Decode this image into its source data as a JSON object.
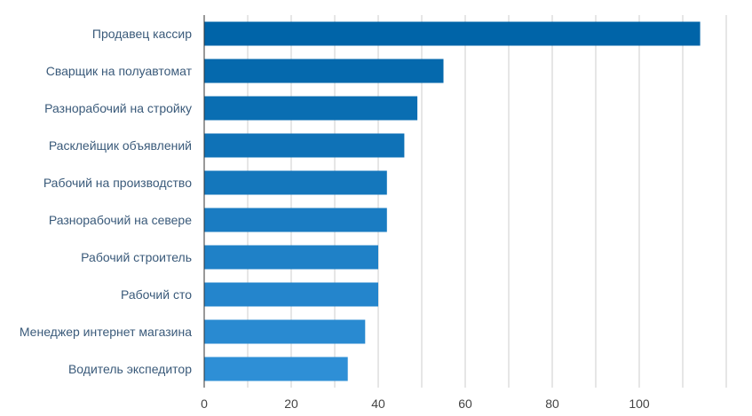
{
  "chart_data": {
    "type": "bar",
    "orientation": "horizontal",
    "categories": [
      "Продавец кассир",
      "Сварщик на полуавтомат",
      "Разнорабочий на стройку",
      "Расклейщик объявлений",
      "Рабочий на производство",
      "Разнорабочий на севере",
      "Рабочий строитель",
      "Рабочий сто",
      "Менеджер интернет магазина",
      "Водитель экспедитор"
    ],
    "values": [
      114,
      55,
      49,
      46,
      42,
      42,
      40,
      40,
      37,
      33
    ],
    "title": "",
    "xlabel": "",
    "ylabel": "",
    "xlim": [
      0,
      120
    ],
    "x_ticks": [
      "0",
      "20",
      "40",
      "60",
      "80",
      "100"
    ],
    "grid": true,
    "bar_color_top": "#0064a8",
    "bar_color_bottom": "#2e8fd6"
  }
}
